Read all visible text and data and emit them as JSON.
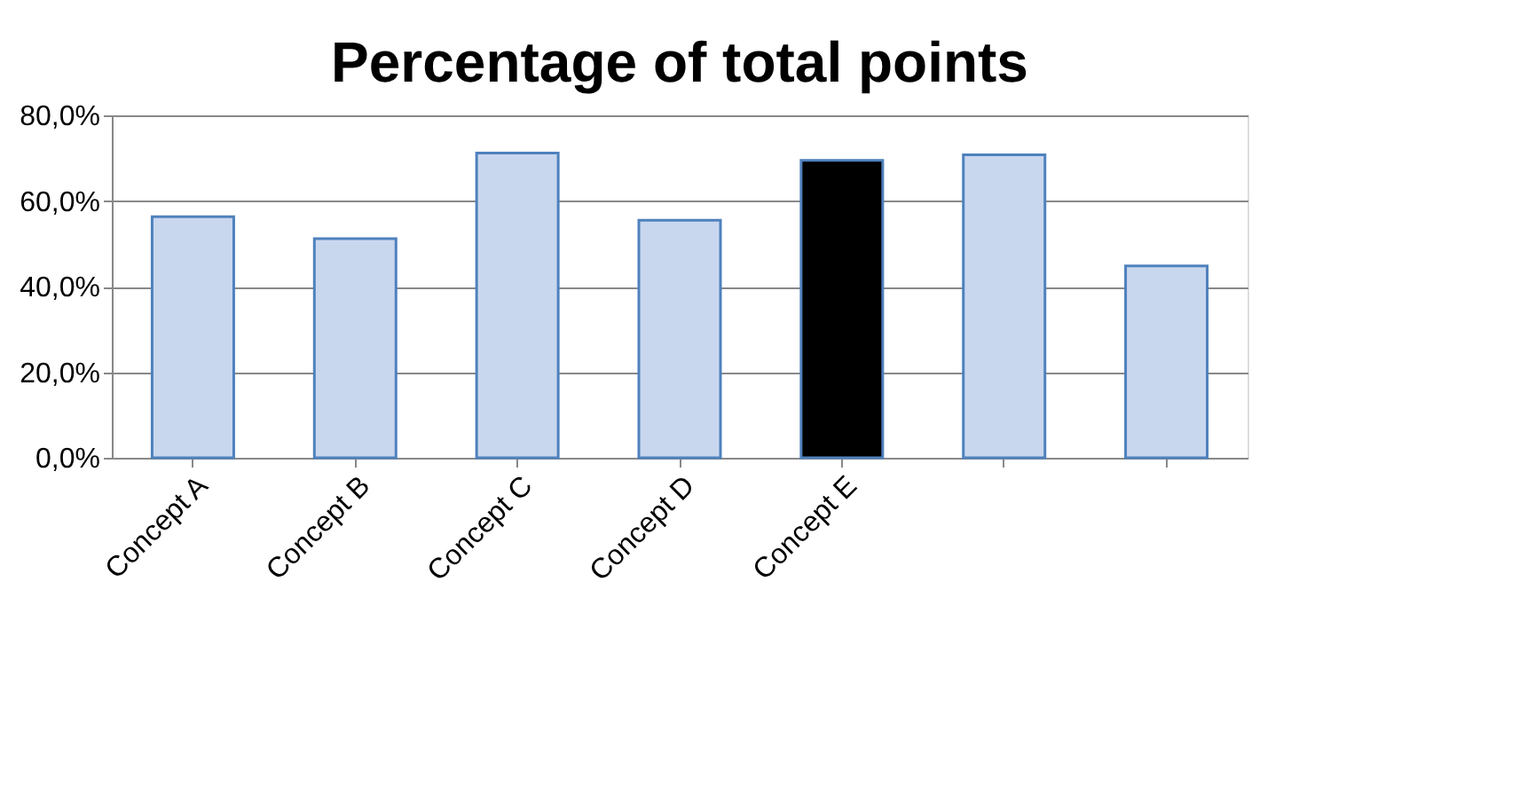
{
  "chart_data": {
    "type": "bar",
    "title": "Percentage of total points",
    "categories": [
      "Concept A",
      "Concept B",
      "Concept C",
      "Concept D",
      "Concept E",
      null,
      null
    ],
    "values": [
      56.3,
      51.2,
      71.2,
      55.5,
      69.5,
      70.8,
      44.8
    ],
    "colors": [
      "#c9d7ee",
      "#c9d7ee",
      "#c9d7ee",
      "#c9d7ee",
      "#000000",
      "#c9d7ee",
      "#c9d7ee"
    ],
    "ylim": [
      0,
      80
    ],
    "yticks": [
      {
        "value": 0,
        "label": "0,0%"
      },
      {
        "value": 20,
        "label": "20,0%"
      },
      {
        "value": 40,
        "label": "40,0%"
      },
      {
        "value": 60,
        "label": "60,0%"
      },
      {
        "value": 80,
        "label": "80,0%"
      }
    ],
    "grid": "y"
  }
}
